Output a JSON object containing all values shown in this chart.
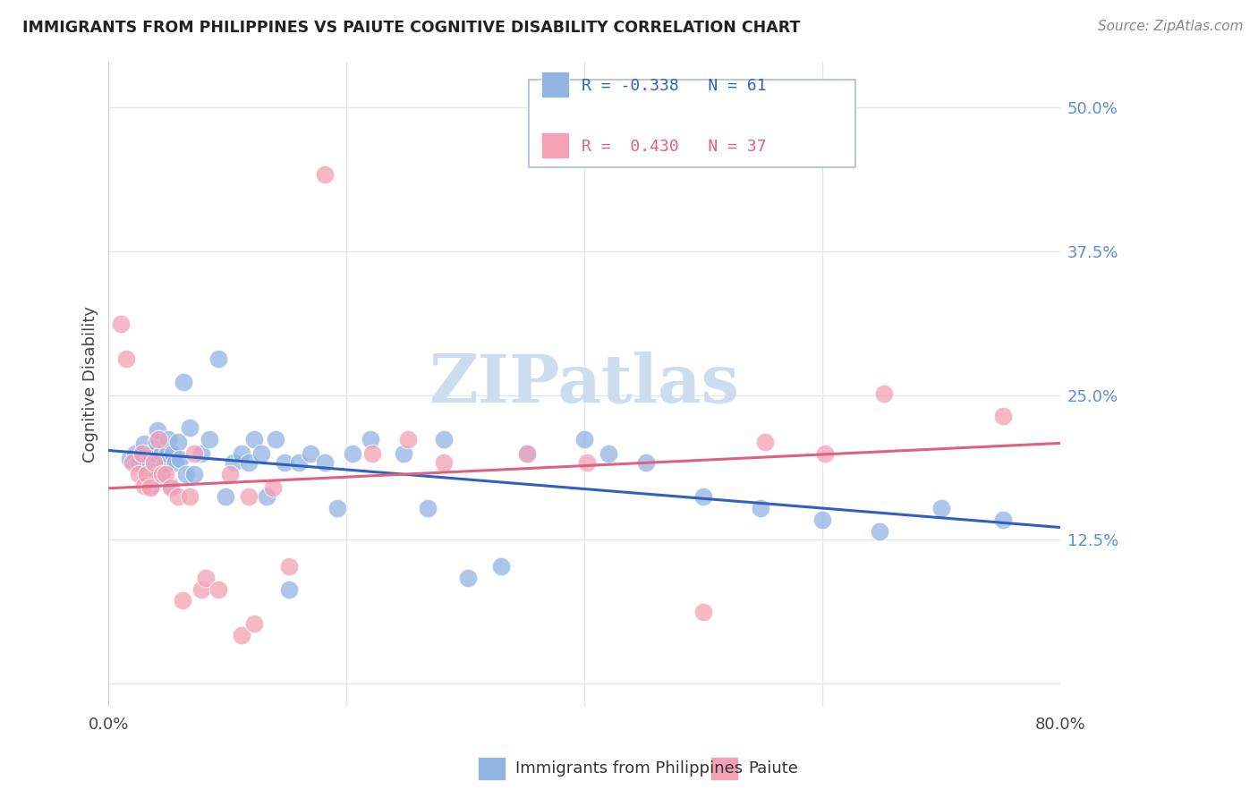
{
  "title": "IMMIGRANTS FROM PHILIPPINES VS PAIUTE COGNITIVE DISABILITY CORRELATION CHART",
  "source": "Source: ZipAtlas.com",
  "ylabel": "Cognitive Disability",
  "yticks": [
    0.0,
    0.125,
    0.25,
    0.375,
    0.5
  ],
  "ytick_labels": [
    "",
    "12.5%",
    "25.0%",
    "37.5%",
    "50.0%"
  ],
  "xlim": [
    0.0,
    0.8
  ],
  "ylim": [
    -0.02,
    0.54
  ],
  "legend_blue_R": "-0.338",
  "legend_blue_N": "61",
  "legend_pink_R": "0.430",
  "legend_pink_N": "37",
  "legend_label_blue": "Immigrants from Philippines",
  "legend_label_pink": "Paiute",
  "blue_color": "#92b4e3",
  "pink_color": "#f4a0b5",
  "trendline_blue_color": "#3060c0",
  "trendline_pink_color": "#e06080",
  "blue_scatter_x": [
    0.018,
    0.022,
    0.025,
    0.028,
    0.03,
    0.032,
    0.033,
    0.035,
    0.036,
    0.038,
    0.039,
    0.04,
    0.041,
    0.043,
    0.045,
    0.047,
    0.049,
    0.05,
    0.052,
    0.054,
    0.056,
    0.058,
    0.06,
    0.063,
    0.065,
    0.068,
    0.072,
    0.078,
    0.085,
    0.092,
    0.098,
    0.105,
    0.112,
    0.118,
    0.122,
    0.128,
    0.133,
    0.14,
    0.148,
    0.152,
    0.16,
    0.17,
    0.182,
    0.192,
    0.205,
    0.22,
    0.248,
    0.268,
    0.282,
    0.302,
    0.33,
    0.352,
    0.4,
    0.42,
    0.452,
    0.5,
    0.548,
    0.6,
    0.648,
    0.7,
    0.752
  ],
  "blue_scatter_y": [
    0.195,
    0.2,
    0.192,
    0.2,
    0.208,
    0.182,
    0.192,
    0.2,
    0.172,
    0.19,
    0.2,
    0.21,
    0.22,
    0.182,
    0.2,
    0.19,
    0.2,
    0.212,
    0.172,
    0.2,
    0.192,
    0.21,
    0.195,
    0.262,
    0.182,
    0.222,
    0.182,
    0.2,
    0.212,
    0.282,
    0.162,
    0.192,
    0.2,
    0.192,
    0.212,
    0.2,
    0.162,
    0.212,
    0.192,
    0.082,
    0.192,
    0.2,
    0.192,
    0.152,
    0.2,
    0.212,
    0.2,
    0.152,
    0.212,
    0.092,
    0.102,
    0.2,
    0.212,
    0.2,
    0.192,
    0.162,
    0.152,
    0.142,
    0.132,
    0.152,
    0.142
  ],
  "pink_scatter_x": [
    0.01,
    0.015,
    0.02,
    0.025,
    0.028,
    0.03,
    0.032,
    0.035,
    0.038,
    0.042,
    0.045,
    0.048,
    0.052,
    0.058,
    0.062,
    0.068,
    0.072,
    0.078,
    0.082,
    0.092,
    0.102,
    0.112,
    0.118,
    0.122,
    0.138,
    0.152,
    0.182,
    0.222,
    0.252,
    0.282,
    0.352,
    0.402,
    0.5,
    0.552,
    0.602,
    0.652,
    0.752
  ],
  "pink_scatter_y": [
    0.312,
    0.282,
    0.192,
    0.182,
    0.2,
    0.172,
    0.182,
    0.17,
    0.192,
    0.212,
    0.182,
    0.182,
    0.17,
    0.162,
    0.072,
    0.162,
    0.2,
    0.082,
    0.092,
    0.082,
    0.182,
    0.042,
    0.162,
    0.052,
    0.17,
    0.102,
    0.442,
    0.2,
    0.212,
    0.192,
    0.2,
    0.192,
    0.062,
    0.21,
    0.2,
    0.252,
    0.232
  ],
  "watermark_text": "ZIPatlas",
  "watermark_color": "#ccddf0",
  "background_color": "#ffffff",
  "grid_color": "#dde8f0",
  "tick_color": "#5b8dd9",
  "title_color": "#222222",
  "source_color": "#888888"
}
